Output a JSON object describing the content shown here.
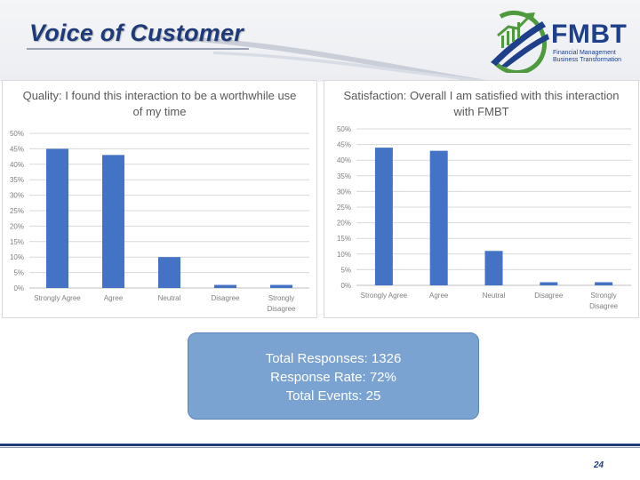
{
  "slide": {
    "title": "Voice of Customer",
    "page_number": "24"
  },
  "logo": {
    "name": "FMBT",
    "subtitle_line1": "Financial Management",
    "subtitle_line2": "Business Transformation",
    "colors": {
      "primary": "#1e3f8a",
      "accent": "#4f9a3f"
    }
  },
  "colors": {
    "bar": "#4472c4",
    "title_text": "#1f3a78",
    "stats_box": "#7aa3d2"
  },
  "stats": {
    "total_responses": "Total Responses: 1326",
    "response_rate": "Response Rate: 72%",
    "total_events": "Total Events: 25"
  },
  "chart_data": [
    {
      "type": "bar",
      "title": "Quality: I found this interaction to be a worthwhile use of my time",
      "categories": [
        "Strongly Agree",
        "Agree",
        "Neutral",
        "Disagree",
        "Strongly Disagree"
      ],
      "values": [
        45,
        43,
        10,
        1,
        1
      ],
      "ylim": [
        0,
        50
      ],
      "yticks": [
        "0%",
        "5%",
        "10%",
        "15%",
        "20%",
        "25%",
        "30%",
        "35%",
        "40%",
        "45%",
        "50%"
      ],
      "grid": true,
      "legend": "none"
    },
    {
      "type": "bar",
      "title": "Satisfaction: Overall I am satisfied with this interaction with FMBT",
      "categories": [
        "Strongly Agree",
        "Agree",
        "Neutral",
        "Disagree",
        "Strongly Disagree"
      ],
      "values": [
        44,
        43,
        11,
        1,
        1
      ],
      "ylim": [
        0,
        50
      ],
      "yticks": [
        "0%",
        "5%",
        "10%",
        "15%",
        "20%",
        "25%",
        "30%",
        "35%",
        "40%",
        "45%",
        "50%"
      ],
      "grid": true,
      "legend": "none"
    }
  ]
}
